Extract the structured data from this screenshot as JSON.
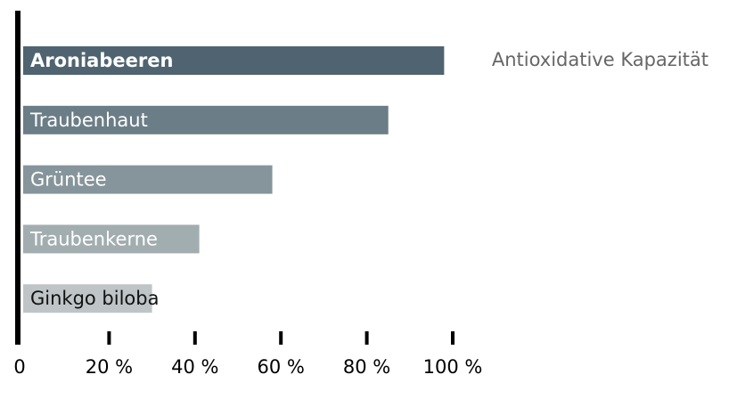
{
  "chart_data": {
    "type": "bar",
    "orientation": "horizontal",
    "categories": [
      "Aroniabeeren",
      "Traubenhaut",
      "Grüntee",
      "Traubenkerne",
      "Ginkgo biloba"
    ],
    "series": [
      {
        "name": "Antioxidative Kapazität",
        "values": [
          98,
          85,
          58,
          41,
          30
        ],
        "colors": [
          "#4f6470",
          "#6b7d86",
          "#86959b",
          "#a2adb0",
          "#bfc5c7"
        ]
      }
    ],
    "xlim": [
      0,
      100
    ],
    "xticks": [
      0,
      {
        "value": 20,
        "label": "20 %"
      },
      {
        "value": 40,
        "label": "40 %"
      },
      {
        "value": 60,
        "label": "60 %"
      },
      {
        "value": 80,
        "label": "80 %"
      },
      {
        "value": 100,
        "label": "100 %"
      }
    ]
  }
}
